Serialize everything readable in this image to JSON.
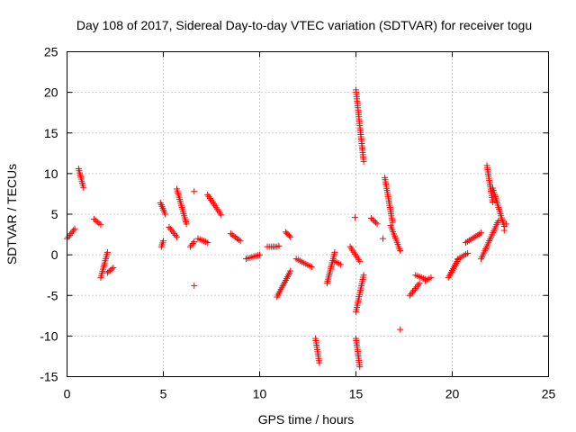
{
  "chart_data": {
    "type": "scatter",
    "title": "Day 108 of 2017, Sidereal Day-to-day VTEC variation (SDTVAR) for receiver togu",
    "xlabel": "GPS time / hours",
    "ylabel": "SDTVAR / TECUs",
    "xlim": [
      0,
      25
    ],
    "ylim": [
      -15,
      25
    ],
    "xticks": [
      0,
      5,
      10,
      15,
      20,
      25
    ],
    "yticks": [
      -15,
      -10,
      -5,
      0,
      5,
      10,
      15,
      20,
      25
    ],
    "grid": true,
    "marker": "plus",
    "color": "#ff0000",
    "segments": [
      {
        "x": [
          0.0,
          0.4
        ],
        "y": [
          2.0,
          3.2
        ]
      },
      {
        "x": [
          0.6,
          0.85
        ],
        "y": [
          10.6,
          8.3
        ]
      },
      {
        "x": [
          1.4,
          1.75
        ],
        "y": [
          4.4,
          3.7
        ]
      },
      {
        "x": [
          1.75,
          2.1
        ],
        "y": [
          -2.8,
          0.3
        ]
      },
      {
        "x": [
          2.1,
          2.4
        ],
        "y": [
          -2.2,
          -1.6
        ]
      },
      {
        "x": [
          4.9,
          5.0
        ],
        "y": [
          1.0,
          1.7
        ]
      },
      {
        "x": [
          4.85,
          5.1
        ],
        "y": [
          6.4,
          5.0
        ]
      },
      {
        "x": [
          5.3,
          5.7
        ],
        "y": [
          3.4,
          2.2
        ]
      },
      {
        "x": [
          5.7,
          6.2
        ],
        "y": [
          8.1,
          3.8
        ]
      },
      {
        "x": [
          6.4,
          6.6
        ],
        "y": [
          1.0,
          1.6
        ]
      },
      {
        "x": [
          6.8,
          7.3
        ],
        "y": [
          2.0,
          1.5
        ]
      },
      {
        "x": [
          7.3,
          8.0
        ],
        "y": [
          7.4,
          4.9
        ]
      },
      {
        "x": [
          8.5,
          9.0
        ],
        "y": [
          2.6,
          1.7
        ]
      },
      {
        "x": [
          9.3,
          10.0
        ],
        "y": [
          -0.5,
          0.0
        ]
      },
      {
        "x": [
          10.4,
          10.9
        ],
        "y": [
          1.0,
          1.0
        ]
      },
      {
        "x": [
          10.9,
          11.6
        ],
        "y": [
          -5.2,
          -2.0
        ]
      },
      {
        "x": [
          11.35,
          11.6
        ],
        "y": [
          2.8,
          2.2
        ]
      },
      {
        "x": [
          11.9,
          12.7
        ],
        "y": [
          -0.5,
          -1.5
        ]
      },
      {
        "x": [
          12.9,
          13.1
        ],
        "y": [
          -10.3,
          -13.3
        ]
      },
      {
        "x": [
          13.5,
          13.9
        ],
        "y": [
          -3.5,
          0.3
        ]
      },
      {
        "x": [
          13.9,
          14.2
        ],
        "y": [
          -0.8,
          -1.2
        ]
      },
      {
        "x": [
          14.7,
          15.2
        ],
        "y": [
          1.0,
          -0.8
        ]
      },
      {
        "x": [
          15.0,
          15.4
        ],
        "y": [
          20.3,
          11.5
        ]
      },
      {
        "x": [
          15.0,
          15.2
        ],
        "y": [
          -10.3,
          -13.8
        ]
      },
      {
        "x": [
          15.0,
          15.4
        ],
        "y": [
          -7.0,
          -2.5
        ]
      },
      {
        "x": [
          15.8,
          16.1
        ],
        "y": [
          4.5,
          3.8
        ]
      },
      {
        "x": [
          16.5,
          16.9
        ],
        "y": [
          9.5,
          4.0
        ]
      },
      {
        "x": [
          16.8,
          17.3
        ],
        "y": [
          3.6,
          0.5
        ]
      },
      {
        "x": [
          17.8,
          18.3
        ],
        "y": [
          -5.0,
          -3.5
        ]
      },
      {
        "x": [
          18.1,
          18.6
        ],
        "y": [
          -2.5,
          -3.0
        ]
      },
      {
        "x": [
          18.6,
          18.9
        ],
        "y": [
          -3.2,
          -2.8
        ]
      },
      {
        "x": [
          19.8,
          20.3
        ],
        "y": [
          -2.8,
          -0.6
        ]
      },
      {
        "x": [
          20.3,
          20.8
        ],
        "y": [
          -0.5,
          0.2
        ]
      },
      {
        "x": [
          20.7,
          21.5
        ],
        "y": [
          1.5,
          2.7
        ]
      },
      {
        "x": [
          21.5,
          22.4
        ],
        "y": [
          -0.5,
          4.2
        ]
      },
      {
        "x": [
          21.8,
          22.1
        ],
        "y": [
          11.0,
          6.5
        ]
      },
      {
        "x": [
          22.1,
          22.7
        ],
        "y": [
          8.2,
          3.5
        ]
      }
    ],
    "points": [
      {
        "x": 6.6,
        "y": 7.8
      },
      {
        "x": 6.6,
        "y": -3.8
      },
      {
        "x": 16.4,
        "y": 2.0
      },
      {
        "x": 17.3,
        "y": -9.2
      },
      {
        "x": 14.95,
        "y": 4.6
      },
      {
        "x": 22.7,
        "y": 3.0
      },
      {
        "x": 22.8,
        "y": 3.8
      },
      {
        "x": 11.0,
        "y": 1.1
      }
    ]
  }
}
